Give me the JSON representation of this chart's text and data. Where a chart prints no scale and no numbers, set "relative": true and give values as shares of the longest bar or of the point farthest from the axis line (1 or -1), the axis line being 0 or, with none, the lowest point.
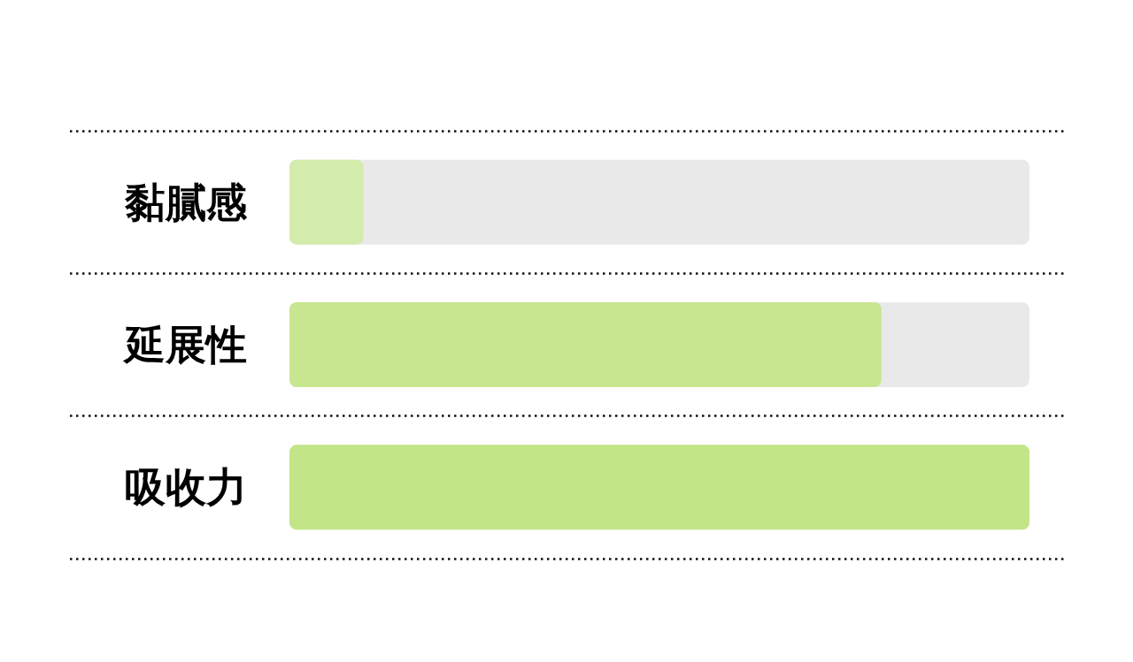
{
  "chart_data": {
    "type": "bar",
    "orientation": "horizontal",
    "categories": [
      "黏膩感",
      "延展性",
      "吸收力"
    ],
    "values": [
      0.1,
      0.8,
      1
    ],
    "colors": [
      "#d4ecab",
      "#c8e690",
      "#c3e587"
    ],
    "relative": true,
    "grid": "y",
    "tick_labels": "y"
  }
}
